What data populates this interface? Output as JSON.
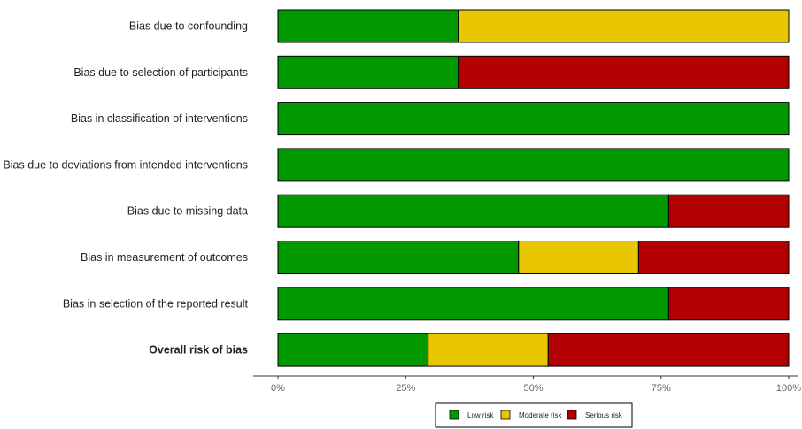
{
  "chart_data": {
    "type": "bar",
    "orientation": "horizontal",
    "stacked": true,
    "title": "",
    "xlabel": "",
    "ylabel": "",
    "xlim": [
      0,
      100
    ],
    "x_ticks": [
      "0%",
      "25%",
      "50%",
      "75%",
      "100%"
    ],
    "x_tick_values": [
      0,
      25,
      50,
      75,
      100
    ],
    "grid": false,
    "legend_position": "bottom",
    "categories": [
      "Bias due to confounding",
      "Bias due to selection of participants",
      "Bias in classification of interventions",
      "Bias due to deviations from intended interventions",
      "Bias due to missing data",
      "Bias in measurement of outcomes",
      "Bias in selection of the reported result",
      "Overall risk of bias"
    ],
    "bold_categories": [
      "Overall risk of bias"
    ],
    "series": [
      {
        "name": "Low risk",
        "color": "#009900",
        "values": [
          35.3,
          35.3,
          100,
          100,
          76.5,
          47.1,
          76.5,
          29.4
        ]
      },
      {
        "name": "Moderate risk",
        "color": "#e9c602",
        "values": [
          64.7,
          0,
          0,
          0,
          0,
          23.5,
          0,
          23.5
        ]
      },
      {
        "name": "Serious risk",
        "color": "#b30000",
        "values": [
          0,
          64.7,
          0,
          0,
          23.5,
          29.4,
          23.5,
          47.1
        ]
      }
    ]
  }
}
